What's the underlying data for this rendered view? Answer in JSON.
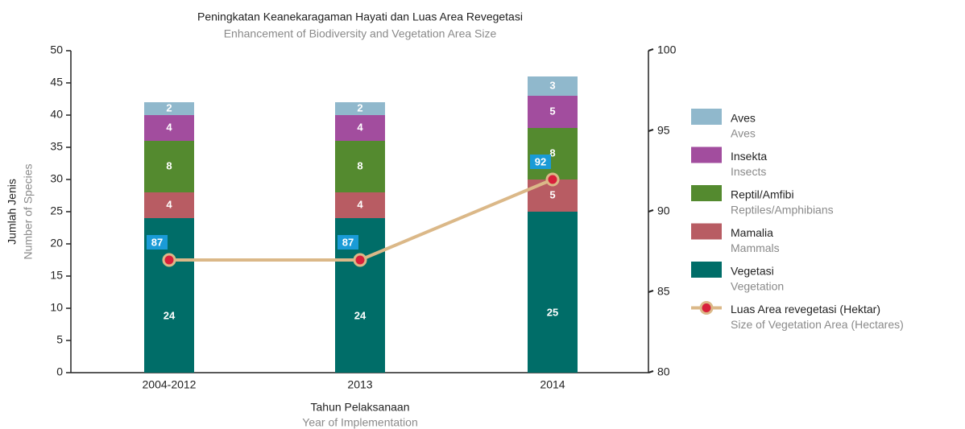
{
  "chart_data": {
    "type": "bar",
    "stacked": true,
    "title": "Peningkatan Keanekaragaman Hayati dan Luas Area Revegetasi",
    "subtitle": "Enhancement of Biodiversity and Vegetation Area Size",
    "x_label": "Tahun Pelaksanaan",
    "x_label_en": "Year of Implementation",
    "y_label": "Jumlah Jenis",
    "y_label_en": "Number of Species",
    "categories": [
      "2004-2012",
      "2013",
      "2014"
    ],
    "ylim": [
      0,
      50
    ],
    "yticks": [
      0,
      5,
      10,
      15,
      20,
      25,
      30,
      35,
      40,
      45,
      50
    ],
    "y2lim": [
      80,
      100
    ],
    "y2ticks": [
      80,
      85,
      90,
      95,
      100
    ],
    "series": [
      {
        "name": "Vegetasi",
        "name_en": "Vegetation",
        "color": "#006d68",
        "values": [
          24,
          24,
          25
        ]
      },
      {
        "name": "Mamalia",
        "name_en": "Mammals",
        "color": "#b85c63",
        "values": [
          4,
          4,
          5
        ]
      },
      {
        "name": "Reptil/Amfibi",
        "name_en": "Reptiles/Amphibians",
        "color": "#548a2f",
        "values": [
          8,
          8,
          8
        ]
      },
      {
        "name": "Insekta",
        "name_en": "Insects",
        "color": "#a24d9e",
        "values": [
          4,
          4,
          5
        ]
      },
      {
        "name": "Aves",
        "name_en": "Aves",
        "color": "#90b8cc",
        "values": [
          2,
          2,
          3
        ]
      },
      {
        "name": "Luas Area revegetasi (Hektar)",
        "name_en": "Size of Vegetation Area (Hectares)",
        "type": "line",
        "axis": "y2",
        "color": "#dbb888",
        "marker_color": "#d8203a",
        "label_color": "#1a9bd7",
        "values": [
          87,
          87,
          92
        ]
      }
    ]
  }
}
